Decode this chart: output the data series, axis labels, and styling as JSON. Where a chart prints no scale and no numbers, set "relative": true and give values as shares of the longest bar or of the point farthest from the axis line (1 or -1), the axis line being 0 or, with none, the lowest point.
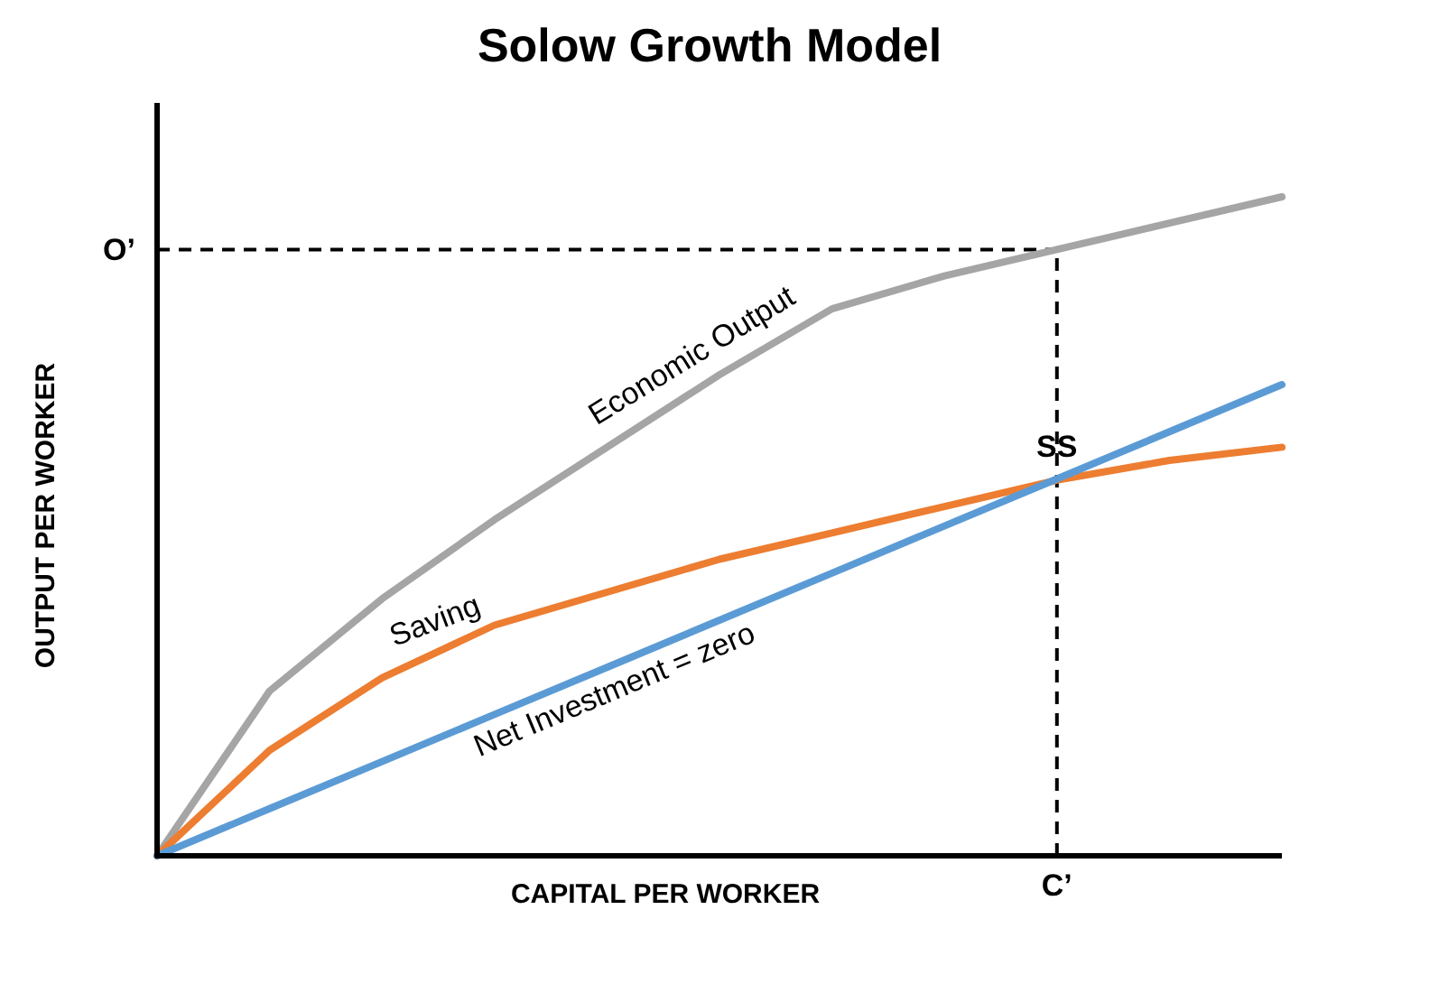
{
  "chart_data": {
    "type": "line",
    "title": "Solow Growth Model",
    "xlabel": "CAPITAL PER WORKER",
    "ylabel": "OUTPUT PER WORKER",
    "relative": true,
    "categories": [
      null,
      null,
      null,
      null,
      null,
      null,
      null,
      null,
      null,
      null,
      null
    ],
    "marker": "none",
    "line_style": "solid",
    "series": [
      {
        "color": "#a5a5a5",
        "values": [
          0,
          0.25,
          0.39,
          0.51,
          0.62,
          0.73,
          0.83,
          0.88,
          0.92,
          0.96,
          1
        ]
      },
      {
        "color": "#ed7d31",
        "values": [
          0,
          0.16,
          0.27,
          0.35,
          0.4,
          0.45,
          0.49,
          0.53,
          0.57,
          0.6,
          0.62
        ]
      },
      {
        "color": "#5b9bd5",
        "values": [
          0,
          0.0715,
          0.143,
          0.2145,
          0.286,
          0.3575,
          0.429,
          0.5005,
          0.572,
          0.6435,
          0.715
        ]
      }
    ],
    "annotations": [
      "Economic Output",
      "Saving",
      "Net Investment = zero",
      "SS",
      "C’",
      "O’"
    ]
  }
}
